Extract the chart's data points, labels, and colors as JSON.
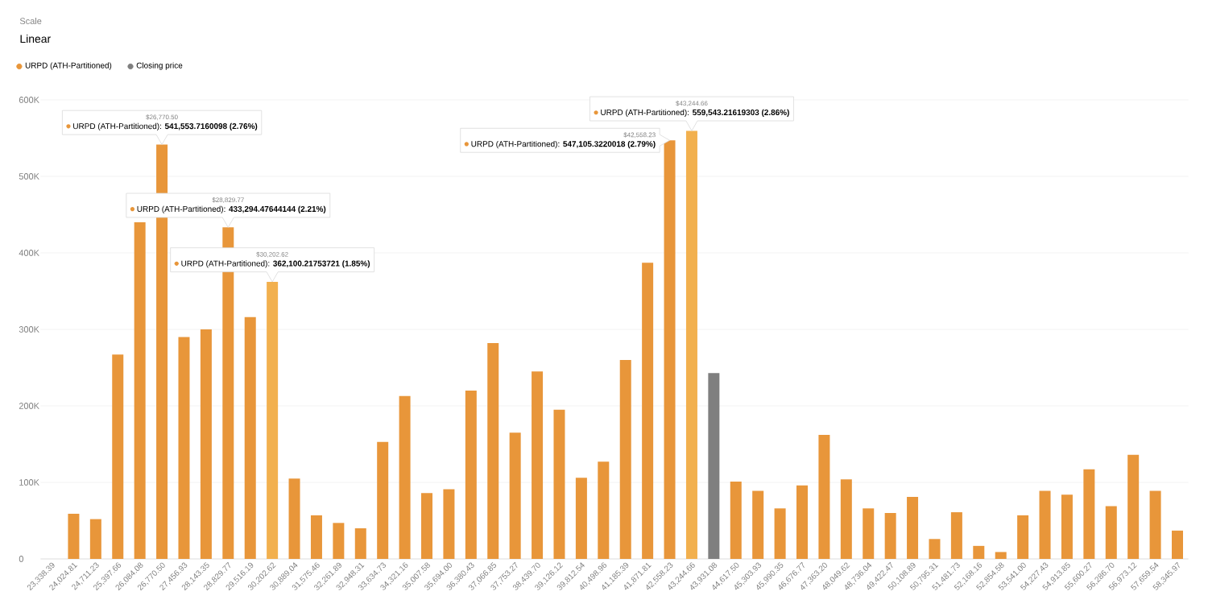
{
  "chart_data": {
    "type": "bar",
    "categories": [
      "23,338.39",
      "24,024.81",
      "24,711.23",
      "25,397.66",
      "26,084.08",
      "26,770.50",
      "27,456.93",
      "28,143.35",
      "28,829.77",
      "29,516.19",
      "30,202.62",
      "30,889.04",
      "31,575.46",
      "32,261.89",
      "32,948.31",
      "33,634.73",
      "34,321.16",
      "35,007.58",
      "35,694.00",
      "36,380.43",
      "37,066.85",
      "37,753.27",
      "38,439.70",
      "39,126.12",
      "39,812.54",
      "40,498.96",
      "41,185.39",
      "41,871.81",
      "42,558.23",
      "43,244.66",
      "43,931.08",
      "44,617.50",
      "45,303.93",
      "45,990.35",
      "46,676.77",
      "47,363.20",
      "48,049.62",
      "48,736.04",
      "49,422.47",
      "50,108.89",
      "50,795.31",
      "51,481.73",
      "52,168.16",
      "52,854.58",
      "53,541.00",
      "54,227.43",
      "54,913.85",
      "55,600.27",
      "56,286.70",
      "56,973.12",
      "57,659.54",
      "58,345.97"
    ],
    "series": [
      {
        "name": "URPD (ATH-Partitioned)",
        "color": "#e8963a",
        "colors": [
          "#e8963a",
          "#e8963a",
          "#e8963a",
          "#e8963a",
          "#e8963a",
          "#e8963a",
          "#e8963a",
          "#e8963a",
          "#e8963a",
          "#e8963a",
          "#f2b04e",
          "#e8963a",
          "#e8963a",
          "#e8963a",
          "#e8963a",
          "#e8963a",
          "#e8963a",
          "#e8963a",
          "#e8963a",
          "#e8963a",
          "#e8963a",
          "#e8963a",
          "#e8963a",
          "#e8963a",
          "#e8963a",
          "#e8963a",
          "#e8963a",
          "#e8963a",
          "#e8963a",
          "#f2b04e",
          "#e8963a",
          "#e8963a",
          "#e8963a",
          "#e8963a",
          "#e8963a",
          "#e8963a",
          "#e8963a",
          "#e8963a",
          "#e8963a",
          "#e8963a",
          "#e8963a",
          "#e8963a",
          "#e8963a",
          "#e8963a",
          "#e8963a",
          "#e8963a",
          "#e8963a",
          "#e8963a",
          "#e8963a",
          "#e8963a",
          "#e8963a",
          "#e8963a"
        ],
        "values": [
          0,
          59000,
          52000,
          267000,
          440000,
          541553.7160098,
          290000,
          300000,
          433294.47644144,
          316000,
          362100.21753721,
          105000,
          57000,
          47000,
          40000,
          153000,
          213000,
          86000,
          91000,
          220000,
          282000,
          165000,
          245000,
          195000,
          106000,
          127000,
          260000,
          387000,
          547105.3220018,
          559543.21619303,
          null,
          101000,
          89000,
          66000,
          96000,
          162000,
          104000,
          66000,
          60000,
          81000,
          26000,
          61000,
          17000,
          9000,
          57000,
          89000,
          84000,
          117000,
          69000,
          136000,
          89000,
          37000
        ]
      },
      {
        "name": "Closing price",
        "color": "#7f7f7f",
        "values": [
          null,
          null,
          null,
          null,
          null,
          null,
          null,
          null,
          null,
          null,
          null,
          null,
          null,
          null,
          null,
          null,
          null,
          null,
          null,
          null,
          null,
          null,
          null,
          null,
          null,
          null,
          null,
          null,
          null,
          null,
          243000,
          null,
          null,
          null,
          null,
          null,
          null,
          null,
          null,
          null,
          null,
          null,
          null,
          null,
          null,
          null,
          null,
          null,
          null,
          null,
          null,
          null
        ]
      }
    ],
    "ylim": [
      0,
      600000
    ],
    "yticks": [
      0,
      {
        "value": 100000,
        "label": "100K"
      },
      {
        "value": 200000,
        "label": "200K"
      },
      {
        "value": 300000,
        "label": "300K"
      },
      {
        "value": 400000,
        "label": "400K"
      },
      {
        "value": 500000,
        "label": "500K"
      },
      {
        "value": 600000,
        "label": "600K"
      }
    ],
    "grid": "y",
    "legend": "top left",
    "annotations": [
      "Scale",
      "Linear",
      "$26,770.50",
      {
        "text": "URPD (ATH-Partitioned): **541,553.7160098 (2.76%)**",
        "x": "26,770.50",
        "y": 541553.7160098
      },
      "$28,829.77",
      {
        "text": "URPD (ATH-Partitioned): **433,294.47644144 (2.21%)**",
        "x": "28,829.77",
        "y": 433294.47644144
      },
      "$30,202.62",
      {
        "text": "URPD (ATH-Partitioned): **362,100.21753721 (1.85%)**",
        "x": "30,202.62",
        "y": 362100.21753721
      },
      "$43,244.66",
      {
        "text": "URPD (ATH-Partitioned): **559,543.21619303 (2.86%)**",
        "x": "43,244.66",
        "y": 559543.21619303
      },
      "$42,558.23",
      {
        "text": "URPD (ATH-Partitioned): **547,105.3220018 (2.79%)**",
        "x": "42,558.23",
        "y": 547105.3220018
      }
    ]
  }
}
